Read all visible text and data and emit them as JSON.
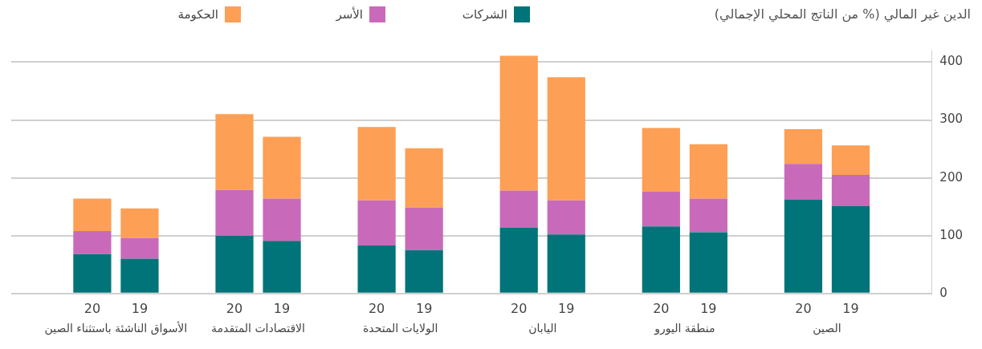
{
  "chart_data": {
    "type": "bar",
    "title": "الدين غير المالي (% من الناتج المحلي الإجمالي)",
    "categories": [
      "20",
      "19",
      "20",
      "19",
      "20",
      "19",
      "20",
      "19",
      "20",
      "19",
      "20",
      "19"
    ],
    "annotations": [
      "الأسواق الناشئة باستثناء الصين",
      "الاقتصادات المتقدمة",
      "الولايات المتحدة",
      "اليابان",
      "منطقة اليورو",
      "الصين"
    ],
    "stacked": true,
    "series": [
      {
        "name": "الشركات",
        "color": "#007479",
        "values": [
          68,
          60,
          100,
          91,
          83,
          75,
          114,
          102,
          116,
          106,
          162,
          151
        ]
      },
      {
        "name": "الأسر",
        "color": "#c86ab9",
        "values": [
          40,
          36,
          79,
          73,
          78,
          74,
          64,
          59,
          60,
          58,
          62,
          54
        ]
      },
      {
        "name": "الحكومة",
        "color": "#fd9f55",
        "values": [
          56,
          51,
          131,
          107,
          127,
          102,
          233,
          213,
          110,
          94,
          60,
          51
        ]
      }
    ],
    "ylim": [
      0,
      420
    ],
    "yticks": [
      0,
      100,
      200,
      300,
      400
    ],
    "grid": "y",
    "legend": "top"
  }
}
